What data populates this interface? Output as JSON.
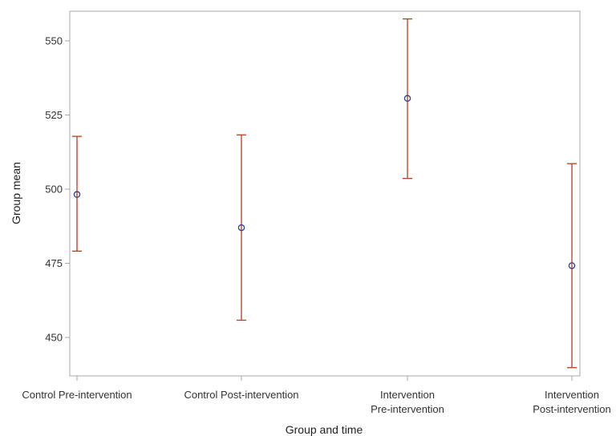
{
  "chart_data": {
    "type": "error-bar",
    "title": "",
    "xlabel": "Group and time",
    "ylabel": "Group mean",
    "ylim": [
      437,
      561
    ],
    "yticks": [
      450,
      475,
      500,
      525,
      550
    ],
    "categories": [
      [
        "Control Pre-intervention"
      ],
      [
        "Control Post-intervention"
      ],
      [
        "Intervention",
        "Pre-intervention"
      ],
      [
        "Intervention",
        "Post-intervention"
      ]
    ],
    "points": [
      {
        "mean": 498.2,
        "lower": 479.1,
        "upper": 517.8
      },
      {
        "mean": 487.0,
        "lower": 455.8,
        "upper": 518.3
      },
      {
        "mean": 530.6,
        "lower": 503.6,
        "upper": 557.4
      },
      {
        "mean": 474.2,
        "lower": 439.8,
        "upper": 508.6
      }
    ],
    "grid": false,
    "colors": {
      "marker": "#2c3e99",
      "errorbar": "#b5401c",
      "frame": "#a8a8a8"
    }
  }
}
